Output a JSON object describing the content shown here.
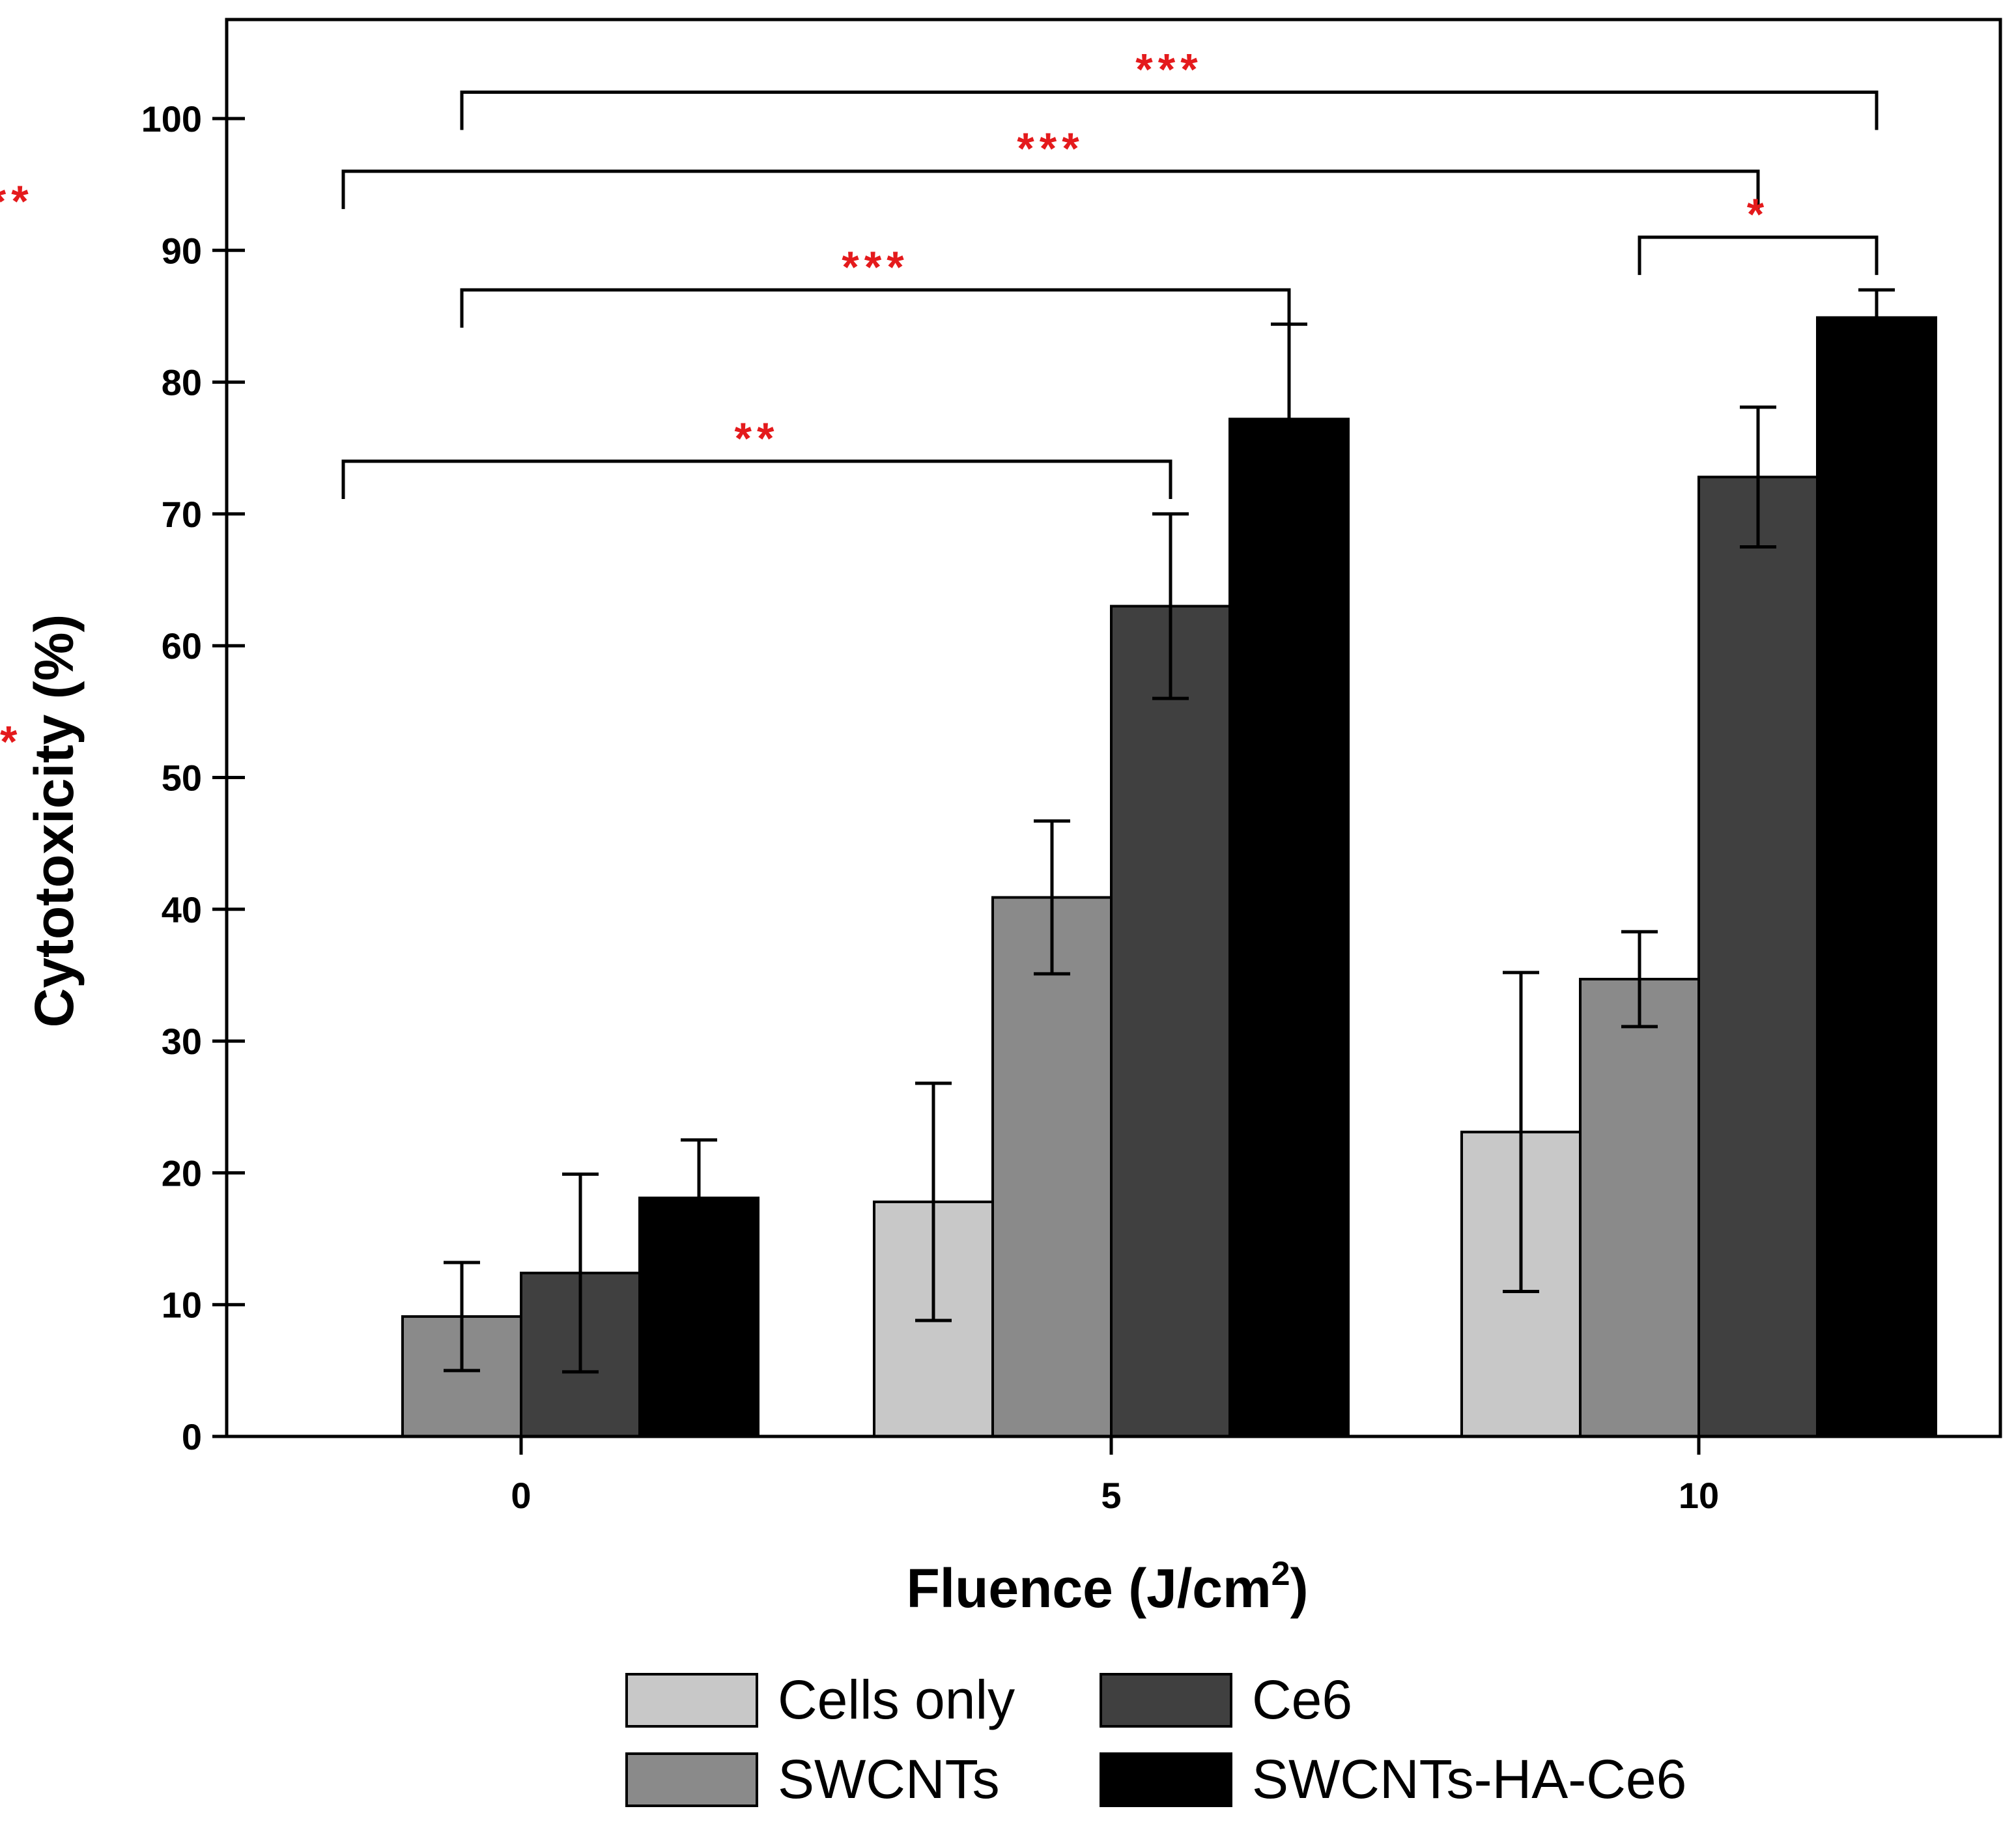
{
  "chart_data": {
    "type": "bar",
    "xlabel": "Fluence (J/cm",
    "xlabel_superscript": "2",
    "xlabel_suffix": ")",
    "ylabel": "Cytotoxicity (%)",
    "ylim": [
      0,
      100
    ],
    "yticks": [
      "0",
      "10",
      "20",
      "30",
      "40",
      "50",
      "60",
      "70",
      "80",
      "90",
      "100"
    ],
    "categories": [
      "0",
      "5",
      "10"
    ],
    "series": [
      {
        "name": "Cells only",
        "color": "#c8c8c8",
        "values": [
          null,
          17.8,
          23.1
        ],
        "errors": [
          null,
          9.0,
          12.1
        ]
      },
      {
        "name": "SWCNTs",
        "color": "#8a8a8a",
        "values": [
          9.1,
          40.9,
          34.7
        ],
        "errors": [
          4.1,
          5.8,
          3.6
        ]
      },
      {
        "name": "Ce6",
        "color": "#404040",
        "values": [
          12.4,
          63.0,
          72.8
        ],
        "errors": [
          7.5,
          7.0,
          5.3
        ]
      },
      {
        "name": "SWCNTs-HA-Ce6",
        "color": "#000000",
        "values": [
          18.1,
          77.2,
          84.9
        ],
        "errors": [
          4.4,
          7.2,
          2.1
        ]
      }
    ],
    "significance": [
      {
        "label": "***",
        "from": [
          0,
          1
        ],
        "to": [
          2,
          3
        ],
        "level": 102
      },
      {
        "label": "***",
        "from": [
          0,
          0
        ],
        "to": [
          2,
          2
        ],
        "level": 96
      },
      {
        "label": "***",
        "from": [
          0,
          -1
        ],
        "to": [
          2,
          1
        ],
        "level": 92
      },
      {
        "label": "***",
        "from": [
          0,
          1
        ],
        "to": [
          1,
          3
        ],
        "level": 87
      },
      {
        "label": "*",
        "from": [
          2,
          1
        ],
        "to": [
          2,
          3
        ],
        "level": 91
      },
      {
        "label": "**",
        "from": [
          0,
          0
        ],
        "to": [
          1,
          2
        ],
        "level": 74
      },
      {
        "label": "**",
        "from": [
          0,
          -1
        ],
        "to": [
          1,
          1
        ],
        "level": 51
      }
    ],
    "legend": {
      "position": "bottom-center",
      "items": [
        "Cells only",
        "Ce6",
        "SWCNTs",
        "SWCNTs-HA-Ce6"
      ]
    }
  }
}
